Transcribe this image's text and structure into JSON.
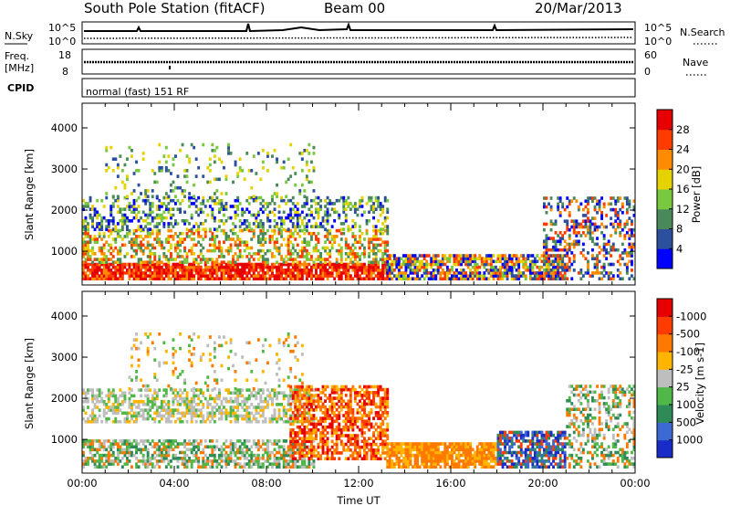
{
  "header": {
    "station": "South Pole Station (fitACF)",
    "beam": "Beam 00",
    "date": "20/Mar/2013"
  },
  "noise_panel": {
    "left_label": "N.Sky",
    "right_label": "N.Search",
    "left_ticks": [
      "10^5",
      "10^0"
    ],
    "right_ticks": [
      "10^5",
      "10^0"
    ]
  },
  "freq_panel": {
    "left_label_1": "Freq.",
    "left_label_2": "[MHz]",
    "left_ticks": [
      "18",
      "8"
    ],
    "right_label": "Nave",
    "right_ticks": [
      "60",
      "0"
    ]
  },
  "cpid_panel": {
    "label": "CPID",
    "text": "normal (fast) 151 RF"
  },
  "chart_data": [
    {
      "type": "heatmap",
      "name": "power",
      "ylabel": "Slant Range [km]",
      "y_ticks": [
        1000,
        2000,
        3000,
        4000
      ],
      "ylim": [
        180,
        4600
      ],
      "xlim_hours": [
        0,
        24
      ],
      "colorbar_label": "Power [dB]",
      "colorbar_ticks": [
        "4",
        "8",
        "12",
        "16",
        "20",
        "24",
        "28"
      ],
      "colorbar_colors": [
        "#0000ff",
        "#2c4f9e",
        "#4a8a5a",
        "#78c840",
        "#e6d200",
        "#ff8c00",
        "#ff3c00",
        "#e60000"
      ],
      "colors": {
        "low": "#0000ff",
        "mid": "#78c840",
        "high": "#ff0000"
      }
    },
    {
      "type": "heatmap",
      "name": "velocity",
      "ylabel": "Slant Range [km]",
      "y_ticks": [
        1000,
        2000,
        3000,
        4000
      ],
      "ylim": [
        180,
        4600
      ],
      "xlim_hours": [
        0,
        24
      ],
      "xlabel": "Time UT",
      "x_ticks": [
        "00:00",
        "04:00",
        "08:00",
        "12:00",
        "16:00",
        "20:00",
        "00:00"
      ],
      "colorbar_label": "Velocity [m s-1]",
      "colorbar_ticks": [
        "1000",
        "500",
        "100",
        "25",
        "-25",
        "-100",
        "-500",
        "-1000"
      ],
      "colorbar_colors": [
        "#1a2cc8",
        "#3c6ad2",
        "#2e8b57",
        "#4fb848",
        "#bebebe",
        "#ffb400",
        "#ff7800",
        "#ff3c00",
        "#e60000"
      ]
    }
  ]
}
